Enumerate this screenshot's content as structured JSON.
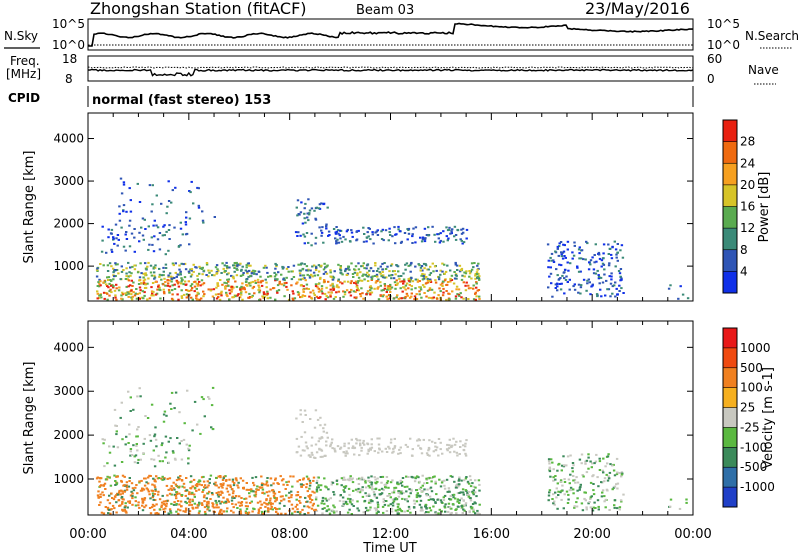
{
  "header": {
    "station": "Zhongshan Station (fitACF)",
    "beam": "Beam 03",
    "date": "23/May/2016"
  },
  "strip_labels": {
    "nsky": "N.Sky",
    "nsky_top": "10^5",
    "nsky_bottom": "10^0",
    "nsearch": "N.Search",
    "nsearch_top": "10^5",
    "nsearch_bottom": "10^0",
    "freq_line1": "Freq.",
    "freq_line2": "[MHz]",
    "freq_top": "18",
    "freq_bottom": "8",
    "nave": "Nave",
    "nave_top": "60",
    "nave_bottom": "0",
    "cpid": "CPID",
    "mode": "normal (fast stereo) 153"
  },
  "chart_data": [
    {
      "type": "heatmap",
      "name": "power",
      "ylabel": "Slant Range [km]",
      "yticks": [
        "1000",
        "2000",
        "3000",
        "4000"
      ],
      "ylim": [
        180,
        4600
      ],
      "xlim": [
        0,
        24
      ],
      "colorbar_label": "Power [dB]",
      "colorbar_ticks": [
        "4",
        "8",
        "12",
        "16",
        "20",
        "24",
        "28"
      ],
      "colorbar_colors": [
        "#1030e8",
        "#2f55b5",
        "#3b8a78",
        "#5aab50",
        "#d7c428",
        "#f6a020",
        "#ef6a10",
        "#e82010"
      ]
    },
    {
      "type": "heatmap",
      "name": "velocity",
      "ylabel": "Slant Range [km]",
      "yticks": [
        "1000",
        "2000",
        "3000",
        "4000"
      ],
      "ylim": [
        180,
        4600
      ],
      "xlim": [
        0,
        24
      ],
      "colorbar_label": "Velocity [m s-1]",
      "colorbar_ticks": [
        "1000",
        "500",
        "100",
        "25",
        "-25",
        "-100",
        "-500",
        "-1000"
      ],
      "colorbar_colors": [
        "#2040c8",
        "#2f6fa8",
        "#3b8a5a",
        "#5ab840",
        "#c8c8c0",
        "#f6b020",
        "#f08020",
        "#f04a10",
        "#e81818"
      ]
    }
  ],
  "x_axis": {
    "ticks": [
      "00:00",
      "04:00",
      "08:00",
      "12:00",
      "16:00",
      "20:00",
      "00:00"
    ],
    "label": "Time UT"
  }
}
